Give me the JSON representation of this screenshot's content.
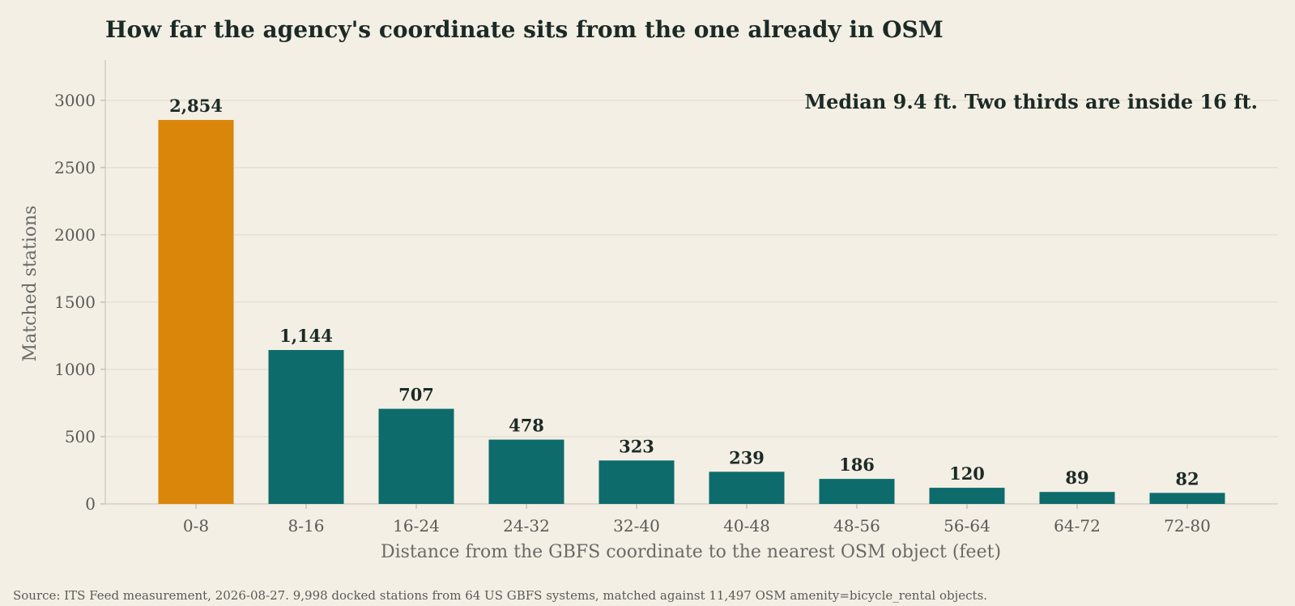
{
  "chart_data": {
    "type": "bar",
    "title": "How far the agency's coordinate sits from the one already in OSM",
    "annotation": "Median 9.4 ft.  Two thirds are inside 16 ft.",
    "xlabel": "Distance from the GBFS coordinate to the nearest OSM object (feet)",
    "ylabel": "Matched stations",
    "categories": [
      "0-8",
      "8-16",
      "16-24",
      "24-32",
      "32-40",
      "40-48",
      "48-56",
      "56-64",
      "64-72",
      "72-80"
    ],
    "values": [
      2854,
      1144,
      707,
      478,
      323,
      239,
      186,
      120,
      89,
      82
    ],
    "value_labels": [
      "2,854",
      "1,144",
      "707",
      "478",
      "323",
      "239",
      "186",
      "120",
      "89",
      "82"
    ],
    "highlight_index": 0,
    "ylim": [
      0,
      3300
    ],
    "yticks": [
      0,
      500,
      1000,
      1500,
      2000,
      2500,
      3000
    ],
    "grid": true,
    "colors": {
      "highlight": "#d9860a",
      "bar": "#0d6b6c",
      "background": "#f3efe4"
    },
    "source": "Source: ITS Feed measurement, 2026-08-27. 9,998 docked stations from 64 US GBFS systems, matched against 11,497 OSM amenity=bicycle_rental objects."
  }
}
